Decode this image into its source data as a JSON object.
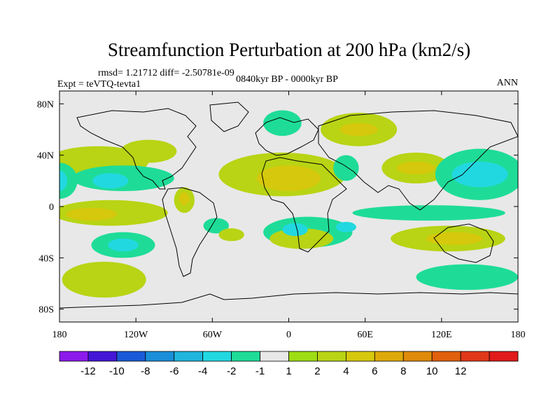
{
  "chart_data": {
    "type": "heatmap",
    "title": "Streamfunction Perturbation at 200 hPa (km2/s)",
    "stats": "rmsd= 1.21712 diff= -2.50781e-09",
    "experiment": "Expt = teVTQ-tevta1",
    "period": "0840kyr BP - 0000kyr BP",
    "season": "ANN",
    "xlim": [
      -180,
      180
    ],
    "ylim": [
      -90,
      90
    ],
    "x_ticks": [
      {
        "value": -180,
        "label": "180"
      },
      {
        "value": -120,
        "label": "120W"
      },
      {
        "value": -60,
        "label": "60W"
      },
      {
        "value": 0,
        "label": "0"
      },
      {
        "value": 60,
        "label": "60E"
      },
      {
        "value": 120,
        "label": "120E"
      },
      {
        "value": 180,
        "label": "180"
      }
    ],
    "y_ticks": [
      {
        "value": 80,
        "label": "80N"
      },
      {
        "value": 40,
        "label": "40N"
      },
      {
        "value": 0,
        "label": "0"
      },
      {
        "value": -40,
        "label": "40S"
      },
      {
        "value": -80,
        "label": "80S"
      }
    ],
    "colorbar": {
      "colors": [
        "#8c1aeb",
        "#4416d6",
        "#1b5ad6",
        "#1a8ed9",
        "#20b5dc",
        "#22d8e0",
        "#1edc98",
        "#e8e8e8",
        "#9edc14",
        "#b8d414",
        "#d6c80c",
        "#dcaa0a",
        "#de8a0a",
        "#e0600e",
        "#e0381a",
        "#e01a1a"
      ],
      "labels": [
        "-12",
        "-10",
        "-8",
        "-6",
        "-4",
        "-2",
        "-1",
        "1",
        "2",
        "4",
        "6",
        "8",
        "10",
        "12"
      ]
    },
    "regions": [
      {
        "name": "north-pacific-pos",
        "lon": -150,
        "lat": 35,
        "rlon": 40,
        "rlat": 12,
        "level": 2
      },
      {
        "name": "tropical-pacific-neg-west",
        "lon": -180,
        "lat": 20,
        "rlon": 14,
        "rlat": 14,
        "level": -2
      },
      {
        "name": "tropical-pacific-neg-west-core",
        "lon": -180,
        "lat": 20,
        "rlon": 6,
        "rlat": 8,
        "level": -4
      },
      {
        "name": "tropical-pacific-neg-mid",
        "lon": -130,
        "lat": 22,
        "rlon": 40,
        "rlat": 10,
        "level": -2
      },
      {
        "name": "tropical-pacific-neg-mid-core",
        "lon": -140,
        "lat": 20,
        "rlon": 14,
        "rlat": 6,
        "level": -4
      },
      {
        "name": "south-pacific-pos",
        "lon": -140,
        "lat": -5,
        "rlon": 45,
        "rlat": 10,
        "level": 2
      },
      {
        "name": "south-pacific-pos-core",
        "lon": -155,
        "lat": -6,
        "rlon": 20,
        "rlat": 5,
        "level": 4
      },
      {
        "name": "north-america-pos",
        "lon": -110,
        "lat": 43,
        "rlon": 22,
        "rlat": 9,
        "level": 2
      },
      {
        "name": "south-pacific-neg",
        "lon": -130,
        "lat": -30,
        "rlon": 25,
        "rlat": 10,
        "level": -2
      },
      {
        "name": "south-pacific-neg-core",
        "lon": -130,
        "lat": -30,
        "rlon": 12,
        "rlat": 5,
        "level": -4
      },
      {
        "name": "southern-ocean-pos",
        "lon": -145,
        "lat": -57,
        "rlon": 33,
        "rlat": 14,
        "level": 2
      },
      {
        "name": "caribbean-pos",
        "lon": -82,
        "lat": 5,
        "rlon": 8,
        "rlat": 10,
        "level": 2
      },
      {
        "name": "caribbean-pos-core",
        "lon": -82,
        "lat": 6,
        "rlon": 4,
        "rlat": 5,
        "level": 4
      },
      {
        "name": "atlantic-africa-pos",
        "lon": -5,
        "lat": 25,
        "rlon": 50,
        "rlat": 17,
        "level": 2
      },
      {
        "name": "atlantic-africa-pos-core",
        "lon": 0,
        "lat": 22,
        "rlon": 25,
        "rlat": 10,
        "level": 4
      },
      {
        "name": "south-atlantic-neg-small",
        "lon": -57,
        "lat": -15,
        "rlon": 10,
        "rlat": 6,
        "level": -2
      },
      {
        "name": "south-atlantic-pos-small",
        "lon": -45,
        "lat": -22,
        "rlon": 10,
        "rlat": 5,
        "level": 2
      },
      {
        "name": "south-africa-neg",
        "lon": 15,
        "lat": -20,
        "rlon": 35,
        "rlat": 12,
        "level": -2
      },
      {
        "name": "south-africa-neg-core",
        "lon": 5,
        "lat": -18,
        "rlon": 10,
        "rlat": 5,
        "level": -4
      },
      {
        "name": "south-africa-neg-core-east",
        "lon": 45,
        "lat": -16,
        "rlon": 8,
        "rlat": 4,
        "level": -4
      },
      {
        "name": "south-atlantic-pos",
        "lon": 10,
        "lat": -25,
        "rlon": 25,
        "rlat": 8,
        "level": 2
      },
      {
        "name": "europe-neg",
        "lon": -5,
        "lat": 65,
        "rlon": 15,
        "rlat": 10,
        "level": -2
      },
      {
        "name": "russia-pos",
        "lon": 55,
        "lat": 60,
        "rlon": 30,
        "rlat": 13,
        "level": 2
      },
      {
        "name": "russia-pos-core",
        "lon": 55,
        "lat": 60,
        "rlon": 15,
        "rlat": 5,
        "level": 4
      },
      {
        "name": "middle-east-neg",
        "lon": 45,
        "lat": 30,
        "rlon": 10,
        "rlat": 10,
        "level": -2
      },
      {
        "name": "asia-pos",
        "lon": 100,
        "lat": 30,
        "rlon": 27,
        "rlat": 12,
        "level": 2
      },
      {
        "name": "asia-pos-core",
        "lon": 100,
        "lat": 30,
        "rlon": 15,
        "rlat": 5,
        "level": 4
      },
      {
        "name": "west-pacific-neg",
        "lon": 150,
        "lat": 25,
        "rlon": 35,
        "rlat": 20,
        "level": -2
      },
      {
        "name": "west-pacific-neg-core",
        "lon": 150,
        "lat": 25,
        "rlon": 22,
        "rlat": 10,
        "level": -4
      },
      {
        "name": "east-indian-neg",
        "lon": 110,
        "lat": -5,
        "rlon": 60,
        "rlat": 6,
        "level": -2
      },
      {
        "name": "australia-pos",
        "lon": 125,
        "lat": -25,
        "rlon": 45,
        "rlat": 10,
        "level": 2
      },
      {
        "name": "australia-pos-core",
        "lon": 130,
        "lat": -25,
        "rlon": 22,
        "rlat": 5,
        "level": 4
      },
      {
        "name": "southern-indian-neg",
        "lon": 140,
        "lat": -55,
        "rlon": 40,
        "rlat": 10,
        "level": -2
      }
    ]
  }
}
